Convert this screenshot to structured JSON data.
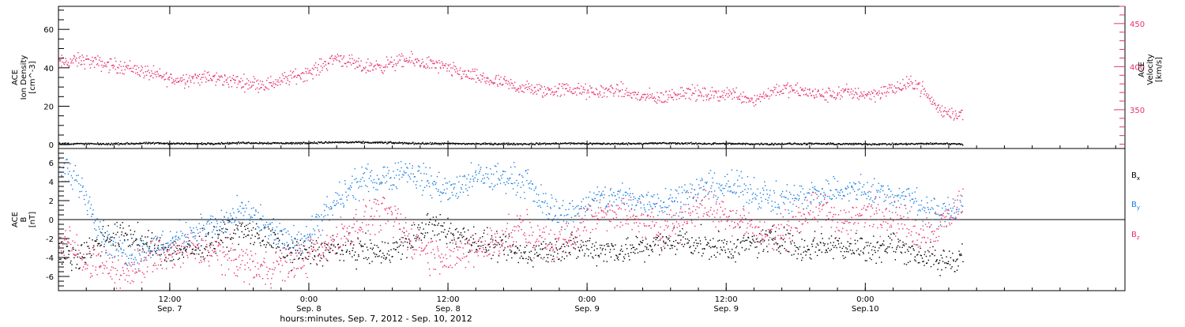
{
  "chart_data": [
    {
      "id": "plasma-panel",
      "type": "scatter",
      "left_axis": {
        "label_lines": [
          "ACE",
          "Ion Density",
          "[cm^-3]"
        ],
        "ylim": [
          -2,
          72
        ],
        "ticks": [
          0,
          20,
          40,
          60
        ],
        "tick_labels": [
          "0",
          "20",
          "40",
          "60"
        ]
      },
      "right_axis": {
        "label_lines": [
          "ACE",
          "Velocity",
          "[km/s]"
        ],
        "ylim": [
          305,
          470
        ],
        "ticks": [
          350,
          400,
          450
        ],
        "tick_labels": [
          "350",
          "400",
          "450"
        ],
        "color": "#e8336a"
      },
      "series": [
        {
          "axis": "right",
          "color": "#e8336a",
          "x": [
            0,
            2,
            4,
            6,
            8,
            10,
            12,
            14,
            16,
            18,
            20,
            22,
            24,
            26,
            28,
            30,
            32,
            34,
            36,
            38,
            40,
            42,
            44,
            46,
            48,
            50,
            52,
            54,
            56,
            58,
            60,
            62,
            64,
            66,
            68,
            70,
            72,
            74,
            76,
            78
          ],
          "y": [
            405,
            408,
            403,
            400,
            392,
            385,
            388,
            386,
            382,
            380,
            388,
            396,
            412,
            400,
            402,
            408,
            404,
            396,
            388,
            382,
            376,
            372,
            375,
            370,
            374,
            366,
            364,
            372,
            367,
            370,
            362,
            375,
            372,
            367,
            371,
            368,
            375,
            382,
            349,
            345
          ],
          "spread": 7
        },
        {
          "axis": "left",
          "color": "#000000",
          "x": [
            0,
            4,
            8,
            12,
            16,
            20,
            24,
            28,
            32,
            36,
            40,
            44,
            48,
            52,
            56,
            60,
            64,
            68,
            72,
            76,
            78
          ],
          "y": [
            0.8,
            0.6,
            1.0,
            0.7,
            1.2,
            1.0,
            1.5,
            1.3,
            0.8,
            0.7,
            0.6,
            0.9,
            0.7,
            1.0,
            0.8,
            0.6,
            0.7,
            0.6,
            0.5,
            0.8,
            0.6
          ],
          "spread": 0.4
        }
      ]
    },
    {
      "id": "imf-panel",
      "type": "scatter",
      "left_axis": {
        "label_lines": [
          "ACE",
          "B",
          "[nT]"
        ],
        "ylim": [
          -7.5,
          7.5
        ],
        "ticks": [
          -6,
          -4,
          -2,
          0,
          2,
          4,
          6
        ],
        "tick_labels": [
          "-6",
          "-4",
          "-2",
          "0",
          "2",
          "4",
          "6"
        ],
        "zero_line": true
      },
      "legend": [
        {
          "name": "Bx",
          "color": "#000000"
        },
        {
          "name": "By",
          "color": "#1a7fe0"
        },
        {
          "name": "Bz",
          "color": "#e8336a"
        }
      ],
      "series": [
        {
          "name": "Bx",
          "color": "#000000",
          "x": [
            0,
            2,
            4,
            6,
            8,
            10,
            12,
            14,
            16,
            18,
            20,
            22,
            24,
            26,
            28,
            30,
            32,
            34,
            36,
            38,
            40,
            42,
            44,
            46,
            48,
            50,
            52,
            54,
            56,
            58,
            60,
            62,
            64,
            66,
            68,
            70,
            72,
            74,
            76,
            78
          ],
          "y": [
            -3.8,
            -3.6,
            -1.8,
            -1.5,
            -3.0,
            -3.2,
            -3.0,
            -1.6,
            -1.2,
            -2.0,
            -3.3,
            -3.4,
            -3.0,
            -3.2,
            -3.5,
            -2.5,
            -0.5,
            -1.5,
            -2.2,
            -3.0,
            -3.5,
            -3.3,
            -2.8,
            -3.0,
            -3.2,
            -3.0,
            -2.5,
            -2.0,
            -2.8,
            -3.0,
            -2.5,
            -1.8,
            -3.0,
            -2.5,
            -2.8,
            -3.0,
            -2.6,
            -3.5,
            -4.5,
            -3.8
          ],
          "spread": 1.2
        },
        {
          "name": "By",
          "color": "#1a7fe0",
          "x": [
            0,
            2,
            4,
            6,
            8,
            10,
            12,
            14,
            16,
            18,
            20,
            22,
            24,
            26,
            28,
            30,
            32,
            34,
            36,
            38,
            40,
            42,
            44,
            46,
            48,
            50,
            52,
            54,
            56,
            58,
            60,
            62,
            64,
            66,
            68,
            70,
            72,
            74,
            76,
            78
          ],
          "y": [
            5.5,
            3.5,
            -2.0,
            -3.5,
            -3.0,
            -2.0,
            -1.0,
            -0.5,
            1.0,
            -1.0,
            -2.5,
            -1.0,
            2.0,
            4.0,
            4.5,
            5.2,
            4.0,
            3.0,
            4.5,
            4.5,
            4.2,
            1.5,
            0.5,
            2.0,
            2.5,
            2.0,
            2.0,
            2.5,
            3.5,
            3.5,
            3.0,
            2.0,
            2.5,
            3.0,
            3.2,
            3.0,
            2.5,
            2.0,
            0.5,
            1.5
          ],
          "spread": 1.3
        },
        {
          "name": "Bz",
          "color": "#e8336a",
          "x": [
            0,
            2,
            4,
            6,
            8,
            10,
            12,
            14,
            16,
            18,
            20,
            22,
            24,
            26,
            28,
            30,
            32,
            34,
            36,
            38,
            40,
            42,
            44,
            46,
            48,
            50,
            52,
            54,
            56,
            58,
            60,
            62,
            64,
            66,
            68,
            70,
            72,
            74,
            76,
            78
          ],
          "y": [
            -2.0,
            -3.8,
            -5.0,
            -5.5,
            -4.0,
            -3.5,
            -3.0,
            -3.5,
            -4.5,
            -5.0,
            -4.5,
            -3.5,
            -2.0,
            0.0,
            1.0,
            -1.5,
            -3.5,
            -4.0,
            -3.0,
            -2.0,
            -1.0,
            -2.5,
            -2.0,
            0.5,
            1.0,
            0.0,
            -1.0,
            0.5,
            1.5,
            0.5,
            -1.0,
            -2.0,
            0.5,
            1.0,
            -0.5,
            1.0,
            0.5,
            -1.5,
            -0.5,
            2.0
          ],
          "spread": 1.6
        }
      ]
    }
  ],
  "x_axis": {
    "range_hours": [
      0,
      92
    ],
    "ticks": [
      {
        "x": 9.6,
        "time": "12:00",
        "date": "Sep. 7"
      },
      {
        "x": 21.6,
        "time": "0:00",
        "date": "Sep. 8"
      },
      {
        "x": 33.6,
        "time": "12:00",
        "date": "Sep. 8"
      },
      {
        "x": 45.6,
        "time": "0:00",
        "date": "Sep. 9"
      },
      {
        "x": 57.6,
        "time": "12:00",
        "date": "Sep. 9"
      },
      {
        "x": 69.6,
        "time": "0:00",
        "date": "Sep.10"
      }
    ],
    "caption": "hours:minutes, Sep.  7, 2012 - Sep. 10, 2012"
  },
  "legend_text": {
    "bx": "B",
    "bx_sub": "x",
    "by": "B",
    "by_sub": "y",
    "bz": "B",
    "bz_sub": "z"
  }
}
